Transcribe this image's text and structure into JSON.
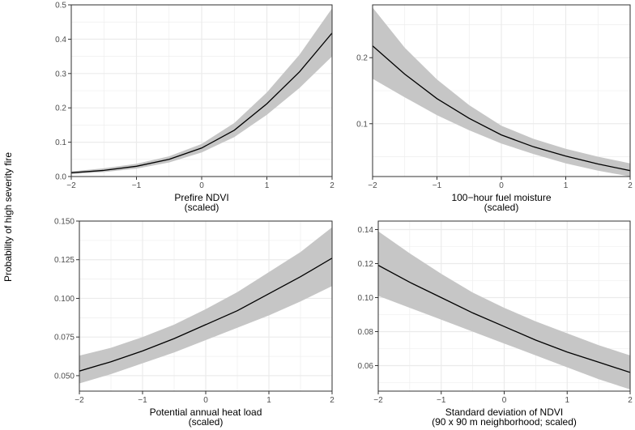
{
  "figure": {
    "ylabel": "Probability of high severity fire"
  },
  "colors": {
    "panel_bg": "#ffffff",
    "grid": "#ebebeb",
    "ribbon": "#c6c6c6",
    "line": "#000000",
    "axis_text": "#4d4d4d",
    "title_text": "#000000"
  },
  "chart_data": [
    {
      "type": "line",
      "xlabel": "Prefire NDVI\n(scaled)",
      "xlim": [
        -2,
        2
      ],
      "ylim": [
        0,
        0.5
      ],
      "xticks": [
        -2,
        -1,
        0,
        1,
        2
      ],
      "xtick_labels": [
        "−2",
        "−1",
        "0",
        "1",
        "2"
      ],
      "yticks": [
        0.0,
        0.1,
        0.2,
        0.3,
        0.4,
        0.5
      ],
      "ytick_labels": [
        "0.0",
        "0.1",
        "0.2",
        "0.3",
        "0.4",
        "0.5"
      ],
      "grid": true,
      "series": [
        {
          "x": [
            -2,
            -1.5,
            -1,
            -0.5,
            0,
            0.5,
            1,
            1.5,
            2
          ],
          "y": [
            0.011,
            0.018,
            0.03,
            0.05,
            0.083,
            0.135,
            0.212,
            0.305,
            0.418
          ],
          "lower": [
            0.007,
            0.013,
            0.023,
            0.041,
            0.07,
            0.115,
            0.18,
            0.258,
            0.35
          ],
          "upper": [
            0.015,
            0.024,
            0.037,
            0.059,
            0.095,
            0.156,
            0.245,
            0.355,
            0.49
          ]
        }
      ]
    },
    {
      "type": "line",
      "xlabel": "100−hour fuel moisture\n(scaled)",
      "xlim": [
        -2,
        2
      ],
      "ylim": [
        0.02,
        0.28
      ],
      "xticks": [
        -2,
        -1,
        0,
        1,
        2
      ],
      "xtick_labels": [
        "−2",
        "−1",
        "0",
        "1",
        "2"
      ],
      "yticks": [
        0.1,
        0.2
      ],
      "ytick_labels": [
        "0.1",
        "0.2"
      ],
      "grid": true,
      "series": [
        {
          "x": [
            -2,
            -1.5,
            -1,
            -0.5,
            0,
            0.5,
            1,
            1.5,
            2
          ],
          "y": [
            0.218,
            0.175,
            0.138,
            0.108,
            0.083,
            0.065,
            0.051,
            0.039,
            0.029
          ],
          "lower": [
            0.168,
            0.14,
            0.113,
            0.09,
            0.07,
            0.054,
            0.04,
            0.029,
            0.02
          ],
          "upper": [
            0.276,
            0.215,
            0.167,
            0.128,
            0.097,
            0.077,
            0.062,
            0.05,
            0.04
          ]
        }
      ]
    },
    {
      "type": "line",
      "xlabel": "Potential annual heat load\n(scaled)",
      "xlim": [
        -2,
        2
      ],
      "ylim": [
        0.04,
        0.15
      ],
      "xticks": [
        -2,
        -1,
        0,
        1,
        2
      ],
      "xtick_labels": [
        "−2",
        "−1",
        "0",
        "1",
        "2"
      ],
      "yticks": [
        0.05,
        0.075,
        0.1,
        0.125,
        0.15
      ],
      "ytick_labels": [
        "0.050",
        "0.075",
        "0.100",
        "0.125",
        "0.150"
      ],
      "grid": true,
      "series": [
        {
          "x": [
            -2,
            -1.5,
            -1,
            -0.5,
            0,
            0.5,
            1,
            1.5,
            2
          ],
          "y": [
            0.053,
            0.059,
            0.066,
            0.074,
            0.083,
            0.092,
            0.103,
            0.114,
            0.126
          ],
          "lower": [
            0.045,
            0.051,
            0.058,
            0.065,
            0.073,
            0.081,
            0.089,
            0.098,
            0.108
          ],
          "upper": [
            0.063,
            0.068,
            0.075,
            0.083,
            0.093,
            0.104,
            0.117,
            0.13,
            0.146
          ]
        }
      ]
    },
    {
      "type": "line",
      "xlabel": "Standard deviation of NDVI\n(90 x 90 m neighborhood; scaled)",
      "xlim": [
        -2,
        2
      ],
      "ylim": [
        0.045,
        0.145
      ],
      "xticks": [
        -2,
        -1,
        0,
        1,
        2
      ],
      "xtick_labels": [
        "−2",
        "−1",
        "0",
        "1",
        "2"
      ],
      "yticks": [
        0.06,
        0.08,
        0.1,
        0.12,
        0.14
      ],
      "ytick_labels": [
        "0.06",
        "0.08",
        "0.10",
        "0.12",
        "0.14"
      ],
      "grid": true,
      "series": [
        {
          "x": [
            -2,
            -1.5,
            -1,
            -0.5,
            0,
            0.5,
            1,
            1.5,
            2
          ],
          "y": [
            0.119,
            0.109,
            0.1,
            0.091,
            0.083,
            0.075,
            0.068,
            0.062,
            0.056
          ],
          "lower": [
            0.101,
            0.094,
            0.087,
            0.08,
            0.073,
            0.066,
            0.059,
            0.052,
            0.046
          ],
          "upper": [
            0.139,
            0.126,
            0.114,
            0.103,
            0.094,
            0.086,
            0.079,
            0.072,
            0.066
          ]
        }
      ]
    }
  ]
}
